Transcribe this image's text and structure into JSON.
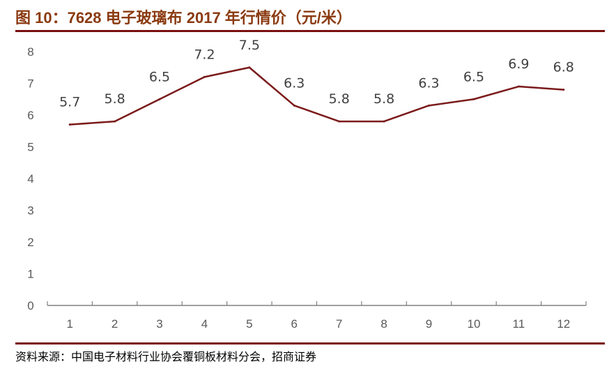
{
  "title": "图 10：7628 电子玻璃布 2017 年行情价（元/米）",
  "source": "资料来源：中国电子材料行业协会覆铜板材料分会，招商证券",
  "colors": {
    "title": "#8a3a10",
    "rule": "#7a0f0f",
    "line": "#7b1a1a",
    "axis": "#808080"
  },
  "chart_data": {
    "type": "line",
    "title": "图 10：7628 电子玻璃布 2017 年行情价（元/米）",
    "xlabel": "",
    "ylabel": "",
    "categories": [
      "1",
      "2",
      "3",
      "4",
      "5",
      "6",
      "7",
      "8",
      "9",
      "10",
      "11",
      "12"
    ],
    "values": [
      5.7,
      5.8,
      6.5,
      7.2,
      7.5,
      6.3,
      5.8,
      5.8,
      6.3,
      6.5,
      6.9,
      6.8
    ],
    "ylim": [
      0,
      8
    ],
    "yticks": [
      0,
      1,
      2,
      3,
      4,
      5,
      6,
      7,
      8
    ],
    "grid": false,
    "legend": "none",
    "data_labels": true
  }
}
